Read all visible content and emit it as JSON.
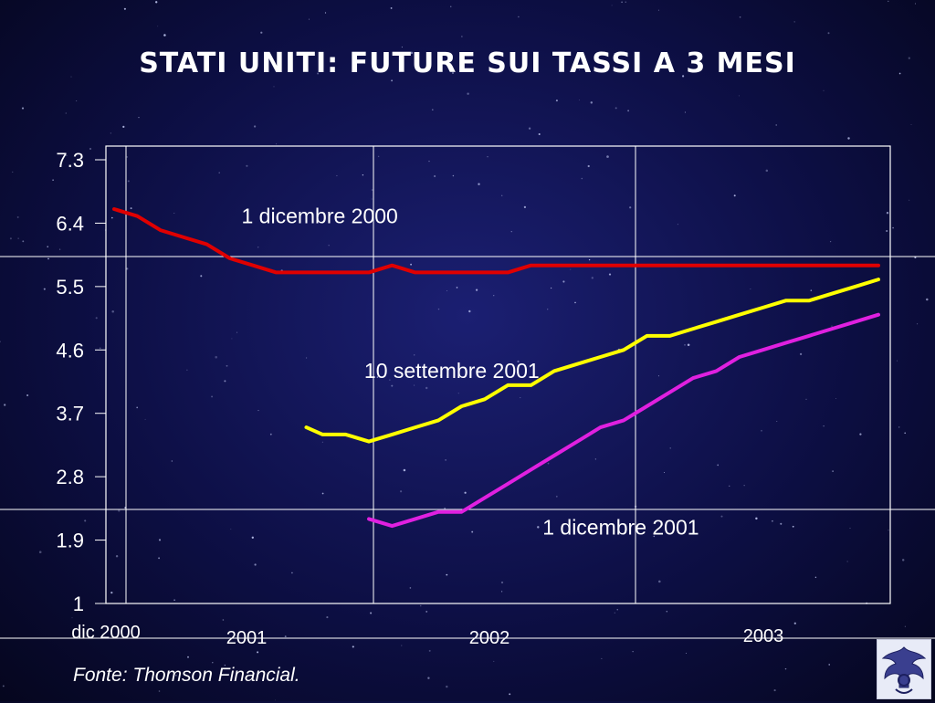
{
  "slide": {
    "title": "STATI UNITI: FUTURE SUI TASSI A 3 MESI",
    "source": "Fonte: Thomson Financial."
  },
  "logo": {
    "name": "confindustria-eagle-logo"
  },
  "colors": {
    "background": "#0d0f45",
    "text": "#ffffff",
    "gridline": "#ffffff",
    "series": [
      "#e00000",
      "#ffff00",
      "#e020e0"
    ]
  },
  "chart_data": {
    "type": "line",
    "title": "STATI UNITI: FUTURE SUI TASSI A 3 MESI",
    "xlabel": "",
    "ylabel": "",
    "ylim": [
      1,
      7.3
    ],
    "yticks": [
      "7.3",
      "6.4",
      "5.5",
      "4.6",
      "3.7",
      "2.8",
      "1.9",
      "1"
    ],
    "xticks": [
      "dic 2000",
      "2001",
      "2002",
      "2003"
    ],
    "xlim": [
      0,
      33.5
    ],
    "grid": true,
    "series": [
      {
        "name": "1 dicembre 2000",
        "color": "#e00000",
        "x": [
          0,
          1,
          2,
          3,
          4,
          5,
          6,
          7,
          8,
          9,
          10,
          11,
          12,
          13,
          14,
          15,
          16,
          17,
          18,
          19,
          20,
          21,
          22,
          23,
          24,
          25,
          26,
          27,
          28,
          29,
          30,
          31,
          32,
          33
        ],
        "values": [
          6.6,
          6.5,
          6.3,
          6.2,
          6.1,
          5.9,
          5.8,
          5.7,
          5.7,
          5.7,
          5.7,
          5.7,
          5.8,
          5.7,
          5.7,
          5.7,
          5.7,
          5.7,
          5.8,
          5.8,
          5.8,
          5.8,
          5.8,
          5.8,
          5.8,
          5.8,
          5.8,
          5.8,
          5.8,
          5.8,
          5.8,
          5.8,
          5.8,
          5.8
        ]
      },
      {
        "name": "10 settembre 2001",
        "color": "#ffff00",
        "x": [
          8.3,
          9,
          10,
          11,
          12,
          13,
          14,
          15,
          16,
          17,
          18,
          19,
          20,
          21,
          22,
          23,
          24,
          25,
          26,
          27,
          28,
          29,
          30,
          31,
          32,
          33
        ],
        "values": [
          3.5,
          3.4,
          3.4,
          3.3,
          3.4,
          3.5,
          3.6,
          3.8,
          3.9,
          4.1,
          4.1,
          4.3,
          4.4,
          4.5,
          4.6,
          4.8,
          4.8,
          4.9,
          5.0,
          5.1,
          5.2,
          5.3,
          5.3,
          5.4,
          5.5,
          5.6
        ]
      },
      {
        "name": "1 dicembre 2001",
        "color": "#e020e0",
        "x": [
          11,
          12,
          13,
          14,
          15,
          16,
          17,
          18,
          19,
          20,
          21,
          22,
          23,
          24,
          25,
          26,
          27,
          28,
          29,
          30,
          31,
          32,
          33
        ],
        "values": [
          2.2,
          2.1,
          2.2,
          2.3,
          2.3,
          2.5,
          2.7,
          2.9,
          3.1,
          3.3,
          3.5,
          3.6,
          3.8,
          4.0,
          4.2,
          4.3,
          4.5,
          4.6,
          4.7,
          4.8,
          4.9,
          5.0,
          5.1
        ]
      }
    ],
    "annotations": [
      {
        "text": "1 dicembre 2000",
        "x": 5.5,
        "y": 6.4
      },
      {
        "text": "10 settembre 2001",
        "x": 10.8,
        "y": 4.2
      },
      {
        "text": "1 dicembre 2001",
        "x": 18.5,
        "y": 1.98
      }
    ]
  }
}
